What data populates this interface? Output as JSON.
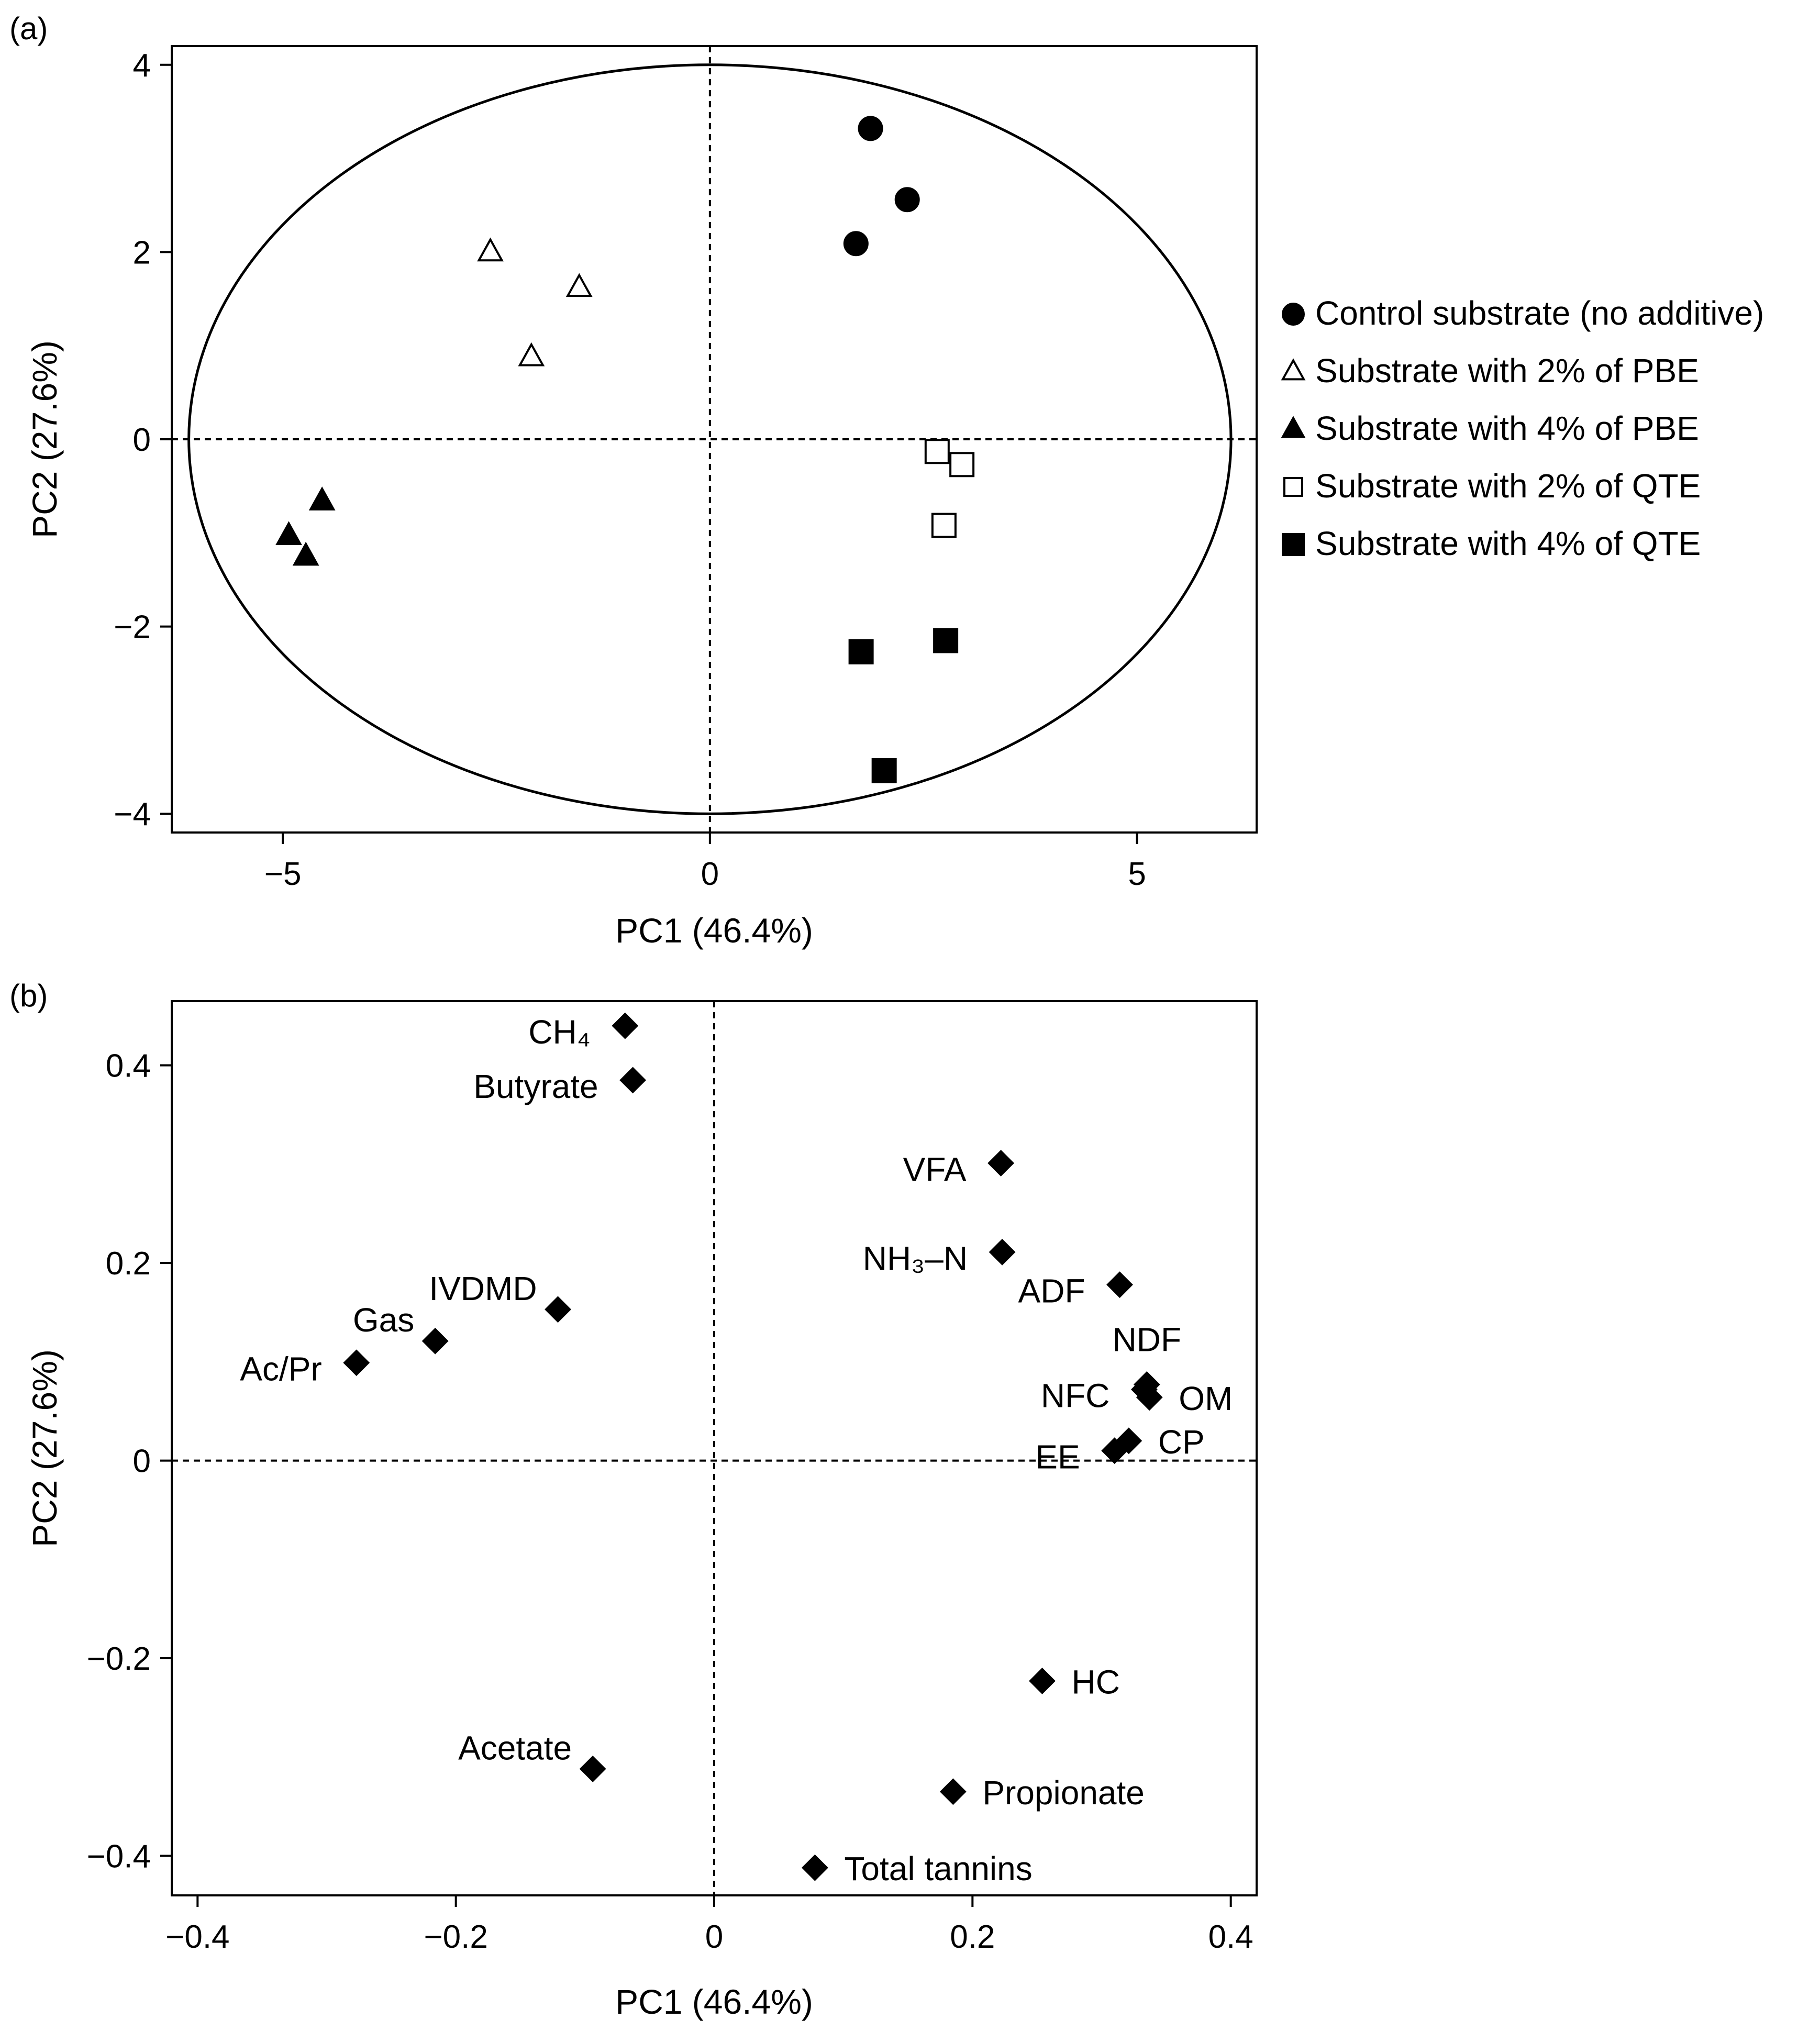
{
  "chart_data": [
    {
      "panel_label": "(a)",
      "type": "scatter",
      "title": "",
      "xlabel": "PC1 (46.4%)",
      "ylabel": "PC2 (27.6%)",
      "xlim": [
        -6.3,
        6.4
      ],
      "ylim": [
        -4.2,
        4.2
      ],
      "xticks": [
        -5,
        0,
        5
      ],
      "xtick_labels": [
        "−5",
        "0",
        "5"
      ],
      "yticks": [
        -4,
        -2,
        0,
        2,
        4
      ],
      "ytick_labels": [
        "−4",
        "−2",
        "0",
        "2",
        "4"
      ],
      "ellipse": {
        "cx": 0,
        "cy": 0,
        "rx": 6.1,
        "ry": 4.0
      },
      "legend_position": "right",
      "series": [
        {
          "name": "Control substrate (no additive)",
          "marker": "circle-filled",
          "points": [
            [
              1.88,
              3.32
            ],
            [
              2.31,
              2.56
            ],
            [
              1.71,
              2.09
            ]
          ]
        },
        {
          "name": "Substrate with 2% of PBE",
          "marker": "triangle-open",
          "points": [
            [
              -2.57,
              2.0
            ],
            [
              -1.53,
              1.62
            ],
            [
              -2.09,
              0.88
            ]
          ]
        },
        {
          "name": "Substrate with 4% of PBE",
          "marker": "triangle-filled",
          "points": [
            [
              -4.54,
              -0.66
            ],
            [
              -4.93,
              -1.03
            ],
            [
              -4.73,
              -1.25
            ]
          ]
        },
        {
          "name": "Substrate with 2% of QTE",
          "marker": "square-open",
          "points": [
            [
              2.66,
              -0.13
            ],
            [
              2.95,
              -0.27
            ],
            [
              2.74,
              -0.92
            ]
          ]
        },
        {
          "name": "Substrate with 4% of QTE",
          "marker": "square-filled",
          "points": [
            [
              1.77,
              -2.27
            ],
            [
              2.76,
              -2.15
            ],
            [
              2.04,
              -3.54
            ]
          ]
        }
      ]
    },
    {
      "panel_label": "(b)",
      "type": "scatter",
      "title": "",
      "xlabel": "PC1 (46.4%)",
      "ylabel": "PC2 (27.6%)",
      "xlim": [
        -0.42,
        0.42
      ],
      "ylim": [
        -0.44,
        0.465
      ],
      "xticks": [
        -0.4,
        -0.2,
        0,
        0.2,
        0.4
      ],
      "xtick_labels": [
        "−0.4",
        "−0.2",
        "0",
        "0.2",
        "0.4"
      ],
      "yticks": [
        -0.4,
        -0.2,
        0,
        0.2,
        0.4
      ],
      "ytick_labels": [
        "−0.4",
        "−0.2",
        "0",
        "0.2",
        "0.4"
      ],
      "marker": "diamond-filled",
      "points": [
        {
          "label": "CH₄",
          "x": -0.069,
          "y": 0.44,
          "label_side": "left"
        },
        {
          "label": "Butyrate",
          "x": -0.063,
          "y": 0.385,
          "label_side": "left"
        },
        {
          "label": "VFA",
          "x": 0.222,
          "y": 0.301,
          "label_side": "left"
        },
        {
          "label": "NH₃–N",
          "x": 0.223,
          "y": 0.211,
          "label_side": "left"
        },
        {
          "label": "ADF",
          "x": 0.314,
          "y": 0.178,
          "label_side": "left"
        },
        {
          "label": "IVDMD",
          "x": -0.121,
          "y": 0.153,
          "label_side": "upper-left"
        },
        {
          "label": "Gas",
          "x": -0.216,
          "y": 0.121,
          "label_side": "upper-left"
        },
        {
          "label": "Ac/Pr",
          "x": -0.277,
          "y": 0.099,
          "label_side": "left"
        },
        {
          "label": "NDF",
          "x": 0.335,
          "y": 0.077,
          "label_side": "above"
        },
        {
          "label": "NFC",
          "x": 0.333,
          "y": 0.072,
          "label_side": "left"
        },
        {
          "label": "OM",
          "x": 0.337,
          "y": 0.064,
          "label_side": "right"
        },
        {
          "label": "CP",
          "x": 0.321,
          "y": 0.02,
          "label_side": "right"
        },
        {
          "label": "EE",
          "x": 0.31,
          "y": 0.01,
          "label_side": "left"
        },
        {
          "label": "HC",
          "x": 0.254,
          "y": -0.223,
          "label_side": "right"
        },
        {
          "label": "Acetate",
          "x": -0.094,
          "y": -0.312,
          "label_side": "upper-left"
        },
        {
          "label": "Propionate",
          "x": 0.185,
          "y": -0.335,
          "label_side": "right"
        },
        {
          "label": "Total tannins",
          "x": 0.078,
          "y": -0.412,
          "label_side": "right"
        }
      ]
    }
  ]
}
